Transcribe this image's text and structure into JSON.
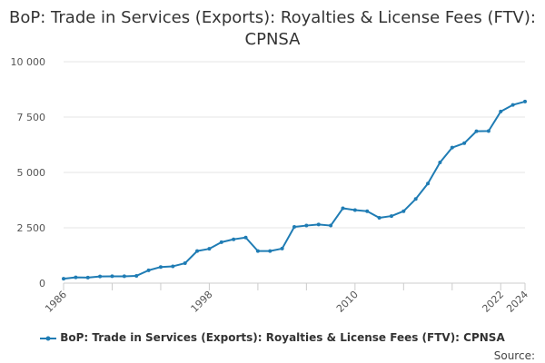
{
  "chart_data": {
    "type": "line",
    "title": "BoP: Trade in Services (Exports): Royalties & License Fees (FTV): CPNSA",
    "xlabel": "",
    "ylabel": "",
    "ylim": [
      0,
      10000
    ],
    "yticks": [
      0,
      2500,
      5000,
      7500,
      10000
    ],
    "ytick_labels": [
      "0",
      "2 500",
      "5 000",
      "7 500",
      "10 000"
    ],
    "xticks": [
      1986,
      1998,
      2010,
      2022,
      2024
    ],
    "xtick_labels": [
      "1986",
      "1998",
      "2010",
      "2022",
      "2024"
    ],
    "grid": "horizontal",
    "legend_position": "bottom",
    "line_color": "#1f7cb4",
    "series": [
      {
        "name": "BoP: Trade in Services (Exports): Royalties & License Fees (FTV): CPNSA",
        "x": [
          1986,
          1987,
          1988,
          1989,
          1990,
          1991,
          1992,
          1993,
          1994,
          1995,
          1996,
          1997,
          1998,
          1999,
          2000,
          2001,
          2002,
          2003,
          2004,
          2005,
          2006,
          2007,
          2008,
          2009,
          2010,
          2011,
          2012,
          2013,
          2014,
          2015,
          2016,
          2017,
          2018,
          2019,
          2020,
          2021,
          2022,
          2023,
          2024
        ],
        "values": [
          200,
          260,
          250,
          300,
          310,
          310,
          330,
          580,
          730,
          760,
          900,
          1450,
          1550,
          1850,
          1980,
          2060,
          1450,
          1450,
          1560,
          2540,
          2600,
          2650,
          2600,
          3380,
          3300,
          3250,
          2950,
          3030,
          3250,
          3800,
          4500,
          5450,
          6120,
          6320,
          6860,
          6870,
          7750,
          8050,
          8200
        ]
      }
    ]
  },
  "legend": {
    "label": "BoP: Trade in Services (Exports): Royalties & License Fees (FTV): CPNSA"
  },
  "source": {
    "label": "Source:"
  }
}
